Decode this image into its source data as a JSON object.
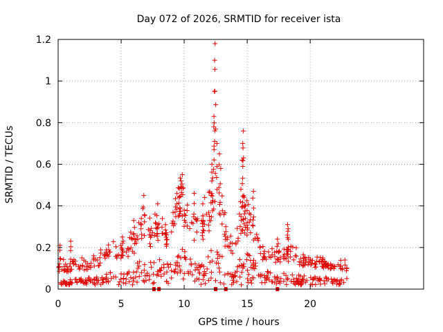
{
  "chart_data": {
    "type": "scatter",
    "title": "Day 072 of 2026, SRMTID for receiver ista",
    "xlabel": "GPS time / hours",
    "ylabel": "SRMTID / TECUs",
    "xlim": [
      0,
      29
    ],
    "ylim": [
      0,
      1.2
    ],
    "xticks": [
      0,
      5,
      10,
      15,
      20
    ],
    "xtick_labels": [
      "0",
      "5",
      "10",
      "15",
      "20"
    ],
    "yticks": [
      0,
      0.2,
      0.4,
      0.6,
      0.8,
      1,
      1.2
    ],
    "ytick_labels": [
      "0",
      "0.2",
      "0.4",
      "0.6",
      "0.8",
      "1",
      "1.2"
    ],
    "grid": true,
    "marker": "plus",
    "marker_color": "#e00000",
    "baseline_markers_x": [
      7.6,
      8.0,
      12.5,
      13.3,
      17.4
    ],
    "baseline_markers_y": 0,
    "series": [
      {
        "name": "SRMTID",
        "profile_x": [
          0,
          0.3,
          0.8,
          1.2,
          2,
          3,
          4,
          4.8,
          5.5,
          6,
          6.5,
          7,
          7.5,
          8,
          8.5,
          9,
          9.5,
          9.8,
          10.2,
          10.8,
          11.5,
          12,
          12.4,
          12.8,
          13.3,
          13.8,
          14.2,
          14.7,
          15,
          15.5,
          16,
          17,
          18,
          18.5,
          19,
          20,
          21,
          22,
          23
        ],
        "profile_y": [
          0.06,
          0.07,
          0.06,
          0.08,
          0.07,
          0.08,
          0.12,
          0.1,
          0.12,
          0.15,
          0.19,
          0.18,
          0.19,
          0.2,
          0.19,
          0.17,
          0.28,
          0.32,
          0.22,
          0.2,
          0.21,
          0.26,
          0.3,
          0.28,
          0.17,
          0.13,
          0.15,
          0.22,
          0.25,
          0.18,
          0.12,
          0.1,
          0.1,
          0.11,
          0.09,
          0.08,
          0.08,
          0.07,
          0.07
        ],
        "spikes": [
          {
            "x": 0.15,
            "y": 0.21
          },
          {
            "x": 1.0,
            "y": 0.23
          },
          {
            "x": 5.1,
            "y": 0.25
          },
          {
            "x": 6.0,
            "y": 0.33
          },
          {
            "x": 6.8,
            "y": 0.45
          },
          {
            "x": 7.3,
            "y": 0.28
          },
          {
            "x": 7.9,
            "y": 0.31
          },
          {
            "x": 8.6,
            "y": 0.26
          },
          {
            "x": 9.6,
            "y": 0.44
          },
          {
            "x": 9.75,
            "y": 0.52
          },
          {
            "x": 9.85,
            "y": 0.55
          },
          {
            "x": 10.0,
            "y": 0.38
          },
          {
            "x": 10.8,
            "y": 0.46
          },
          {
            "x": 11.5,
            "y": 0.33
          },
          {
            "x": 12.0,
            "y": 0.35
          },
          {
            "x": 12.2,
            "y": 0.6
          },
          {
            "x": 12.35,
            "y": 0.78
          },
          {
            "x": 12.4,
            "y": 0.95
          },
          {
            "x": 12.42,
            "y": 1.1
          },
          {
            "x": 12.45,
            "y": 1.18
          },
          {
            "x": 12.6,
            "y": 0.7
          },
          {
            "x": 12.8,
            "y": 0.65
          },
          {
            "x": 12.9,
            "y": 0.58
          },
          {
            "x": 13.3,
            "y": 0.3
          },
          {
            "x": 14.5,
            "y": 0.48
          },
          {
            "x": 14.6,
            "y": 0.62
          },
          {
            "x": 14.65,
            "y": 0.7
          },
          {
            "x": 14.7,
            "y": 0.76
          },
          {
            "x": 14.8,
            "y": 0.4
          },
          {
            "x": 15.0,
            "y": 0.32
          },
          {
            "x": 15.5,
            "y": 0.47
          },
          {
            "x": 17.4,
            "y": 0.24
          },
          {
            "x": 18.2,
            "y": 0.31
          },
          {
            "x": 18.25,
            "y": 0.29
          },
          {
            "x": 19.5,
            "y": 0.15
          },
          {
            "x": 21.0,
            "y": 0.15
          }
        ]
      }
    ]
  }
}
